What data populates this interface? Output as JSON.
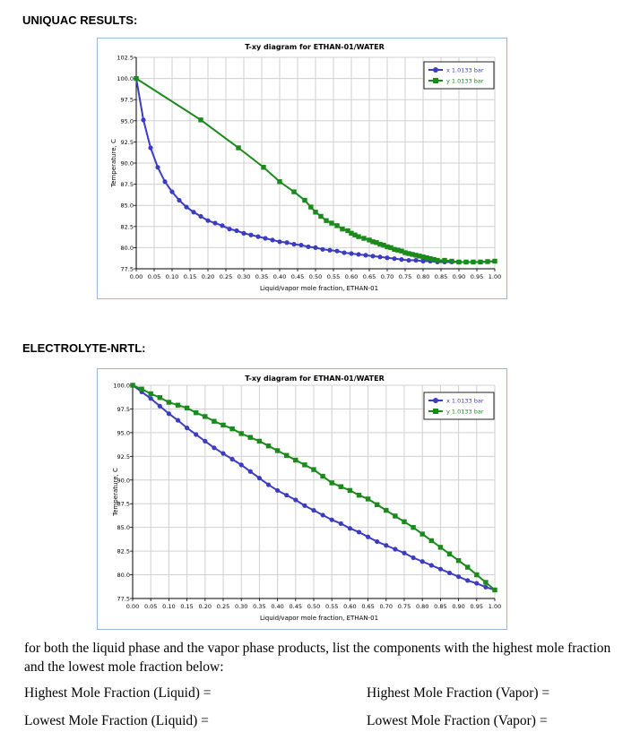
{
  "sections": {
    "uniquac_heading": "UNIQUAC RESULTS:",
    "nrtl_heading": "ELECTROLYTE-NRTL:"
  },
  "chart_data": [
    {
      "type": "line",
      "title": "T-xy diagram for ETHAN-01/WATER",
      "xlabel": "Liquid/vapor mole fraction, ETHAN-01",
      "ylabel": "Temperature, C",
      "xlim": [
        0,
        1
      ],
      "ylim": [
        77.5,
        102.5
      ],
      "xticks": [
        "0.00",
        "0.05",
        "0.10",
        "0.15",
        "0.20",
        "0.25",
        "0.30",
        "0.35",
        "0.40",
        "0.45",
        "0.50",
        "0.55",
        "0.60",
        "0.65",
        "0.70",
        "0.75",
        "0.80",
        "0.85",
        "0.90",
        "0.95",
        "1.00"
      ],
      "yticks": [
        "77.5",
        "80.0",
        "82.5",
        "85.0",
        "87.5",
        "90.0",
        "92.5",
        "95.0",
        "97.5",
        "100.0",
        "102.5"
      ],
      "grid": true,
      "legend": "top-right",
      "series": [
        {
          "name": "x  1.0133 bar",
          "color": "#3c3cc0",
          "marker": "circle",
          "points": [
            [
              0,
              100
            ],
            [
              0.02,
              95.1
            ],
            [
              0.04,
              91.8
            ],
            [
              0.06,
              89.5
            ],
            [
              0.08,
              87.8
            ],
            [
              0.1,
              86.6
            ],
            [
              0.12,
              85.6
            ],
            [
              0.14,
              84.8
            ],
            [
              0.16,
              84.2
            ],
            [
              0.18,
              83.7
            ],
            [
              0.2,
              83.2
            ],
            [
              0.22,
              82.9
            ],
            [
              0.24,
              82.6
            ],
            [
              0.26,
              82.2
            ],
            [
              0.28,
              82.0
            ],
            [
              0.3,
              81.7
            ],
            [
              0.32,
              81.5
            ],
            [
              0.34,
              81.3
            ],
            [
              0.36,
              81.1
            ],
            [
              0.38,
              80.9
            ],
            [
              0.4,
              80.7
            ],
            [
              0.42,
              80.6
            ],
            [
              0.44,
              80.4
            ],
            [
              0.46,
              80.3
            ],
            [
              0.48,
              80.1
            ],
            [
              0.5,
              80.0
            ],
            [
              0.52,
              79.8
            ],
            [
              0.54,
              79.7
            ],
            [
              0.56,
              79.6
            ],
            [
              0.58,
              79.4
            ],
            [
              0.6,
              79.3
            ],
            [
              0.62,
              79.2
            ],
            [
              0.64,
              79.1
            ],
            [
              0.66,
              79.0
            ],
            [
              0.68,
              78.9
            ],
            [
              0.7,
              78.8
            ],
            [
              0.72,
              78.7
            ],
            [
              0.74,
              78.6
            ],
            [
              0.76,
              78.5
            ],
            [
              0.78,
              78.5
            ],
            [
              0.8,
              78.4
            ],
            [
              0.82,
              78.4
            ],
            [
              0.84,
              78.3
            ],
            [
              0.86,
              78.3
            ],
            [
              0.88,
              78.3
            ],
            [
              0.9,
              78.3
            ],
            [
              0.92,
              78.3
            ],
            [
              0.94,
              78.3
            ],
            [
              0.96,
              78.3
            ],
            [
              0.98,
              78.35
            ],
            [
              1.0,
              78.4
            ]
          ]
        },
        {
          "name": "y  1.0133 bar",
          "color": "#1a8a1a",
          "marker": "square",
          "points": [
            [
              0,
              100
            ],
            [
              0.18,
              95.1
            ],
            [
              0.285,
              91.8
            ],
            [
              0.355,
              89.5
            ],
            [
              0.4,
              87.8
            ],
            [
              0.44,
              86.6
            ],
            [
              0.47,
              85.6
            ],
            [
              0.487,
              84.8
            ],
            [
              0.5,
              84.2
            ],
            [
              0.515,
              83.7
            ],
            [
              0.53,
              83.2
            ],
            [
              0.545,
              82.9
            ],
            [
              0.56,
              82.6
            ],
            [
              0.575,
              82.2
            ],
            [
              0.59,
              82.0
            ],
            [
              0.6,
              81.7
            ],
            [
              0.61,
              81.5
            ],
            [
              0.62,
              81.3
            ],
            [
              0.635,
              81.1
            ],
            [
              0.65,
              80.9
            ],
            [
              0.66,
              80.7
            ],
            [
              0.67,
              80.6
            ],
            [
              0.68,
              80.4
            ],
            [
              0.69,
              80.3
            ],
            [
              0.7,
              80.1
            ],
            [
              0.71,
              80.0
            ],
            [
              0.72,
              79.8
            ],
            [
              0.73,
              79.7
            ],
            [
              0.74,
              79.6
            ],
            [
              0.75,
              79.4
            ],
            [
              0.76,
              79.3
            ],
            [
              0.77,
              79.2
            ],
            [
              0.78,
              79.1
            ],
            [
              0.79,
              79.0
            ],
            [
              0.8,
              78.9
            ],
            [
              0.81,
              78.8
            ],
            [
              0.82,
              78.7
            ],
            [
              0.83,
              78.6
            ],
            [
              0.84,
              78.5
            ],
            [
              0.86,
              78.5
            ],
            [
              0.88,
              78.4
            ],
            [
              0.9,
              78.3
            ],
            [
              0.92,
              78.3
            ],
            [
              0.94,
              78.3
            ],
            [
              0.96,
              78.3
            ],
            [
              0.98,
              78.35
            ],
            [
              1.0,
              78.4
            ]
          ]
        }
      ]
    },
    {
      "type": "line",
      "title": "T-xy diagram for ETHAN-01/WATER",
      "xlabel": "Liquid/vapor mole fraction, ETHAN-01",
      "ylabel": "Temperature, C",
      "xlim": [
        0,
        1
      ],
      "ylim": [
        77.5,
        100.0
      ],
      "xticks": [
        "0.00",
        "0.05",
        "0.10",
        "0.15",
        "0.20",
        "0.25",
        "0.30",
        "0.35",
        "0.40",
        "0.45",
        "0.50",
        "0.55",
        "0.60",
        "0.65",
        "0.70",
        "0.75",
        "0.80",
        "0.85",
        "0.90",
        "0.95",
        "1.00"
      ],
      "yticks": [
        "77.5",
        "80.0",
        "82.5",
        "85.0",
        "87.5",
        "90.0",
        "92.5",
        "95.0",
        "97.5",
        "100.0"
      ],
      "grid": true,
      "legend": "top-right",
      "series": [
        {
          "name": "x  1.0133 bar",
          "color": "#3c3cc0",
          "marker": "circle",
          "points": [
            [
              0,
              100
            ],
            [
              0.025,
              99.3
            ],
            [
              0.05,
              98.6
            ],
            [
              0.075,
              97.8
            ],
            [
              0.1,
              97.0
            ],
            [
              0.125,
              96.3
            ],
            [
              0.15,
              95.5
            ],
            [
              0.175,
              94.8
            ],
            [
              0.2,
              94.1
            ],
            [
              0.225,
              93.4
            ],
            [
              0.25,
              92.8
            ],
            [
              0.275,
              92.2
            ],
            [
              0.3,
              91.6
            ],
            [
              0.325,
              90.9
            ],
            [
              0.35,
              90.2
            ],
            [
              0.375,
              89.5
            ],
            [
              0.4,
              88.9
            ],
            [
              0.425,
              88.4
            ],
            [
              0.45,
              87.9
            ],
            [
              0.475,
              87.3
            ],
            [
              0.5,
              86.8
            ],
            [
              0.525,
              86.3
            ],
            [
              0.55,
              85.8
            ],
            [
              0.575,
              85.4
            ],
            [
              0.6,
              84.9
            ],
            [
              0.625,
              84.5
            ],
            [
              0.65,
              84.0
            ],
            [
              0.675,
              83.5
            ],
            [
              0.7,
              83.1
            ],
            [
              0.725,
              82.7
            ],
            [
              0.75,
              82.3
            ],
            [
              0.775,
              81.8
            ],
            [
              0.8,
              81.4
            ],
            [
              0.825,
              81.0
            ],
            [
              0.85,
              80.6
            ],
            [
              0.875,
              80.2
            ],
            [
              0.9,
              79.8
            ],
            [
              0.925,
              79.4
            ],
            [
              0.95,
              79.1
            ],
            [
              0.975,
              78.7
            ],
            [
              1.0,
              78.4
            ]
          ]
        },
        {
          "name": "y  1.0133 bar",
          "color": "#1a8a1a",
          "marker": "square",
          "points": [
            [
              0,
              100
            ],
            [
              0.025,
              99.6
            ],
            [
              0.05,
              99.1
            ],
            [
              0.075,
              98.7
            ],
            [
              0.1,
              98.2
            ],
            [
              0.125,
              97.9
            ],
            [
              0.15,
              97.6
            ],
            [
              0.175,
              97.1
            ],
            [
              0.2,
              96.7
            ],
            [
              0.225,
              96.2
            ],
            [
              0.25,
              95.8
            ],
            [
              0.275,
              95.4
            ],
            [
              0.3,
              94.9
            ],
            [
              0.325,
              94.5
            ],
            [
              0.35,
              94.1
            ],
            [
              0.375,
              93.6
            ],
            [
              0.4,
              93.1
            ],
            [
              0.425,
              92.6
            ],
            [
              0.45,
              92.1
            ],
            [
              0.475,
              91.6
            ],
            [
              0.5,
              91.1
            ],
            [
              0.525,
              90.4
            ],
            [
              0.55,
              89.7
            ],
            [
              0.575,
              89.3
            ],
            [
              0.6,
              88.9
            ],
            [
              0.625,
              88.4
            ],
            [
              0.65,
              88.0
            ],
            [
              0.675,
              87.4
            ],
            [
              0.7,
              86.8
            ],
            [
              0.725,
              86.2
            ],
            [
              0.75,
              85.6
            ],
            [
              0.775,
              85.0
            ],
            [
              0.8,
              84.3
            ],
            [
              0.825,
              83.6
            ],
            [
              0.85,
              82.9
            ],
            [
              0.875,
              82.2
            ],
            [
              0.9,
              81.5
            ],
            [
              0.925,
              80.8
            ],
            [
              0.95,
              80.0
            ],
            [
              0.975,
              79.2
            ],
            [
              1.0,
              78.4
            ]
          ]
        }
      ]
    }
  ],
  "question": {
    "prompt": "for both the liquid phase and the vapor phase products, list the components with the highest mole fraction and the lowest mole fraction below:",
    "highest_liquid": "Highest Mole Fraction (Liquid) =",
    "highest_vapor": "Highest Mole Fraction (Vapor) =",
    "lowest_liquid": "Lowest Mole Fraction (Liquid) =",
    "lowest_vapor": "Lowest Mole Fraction (Vapor) ="
  }
}
